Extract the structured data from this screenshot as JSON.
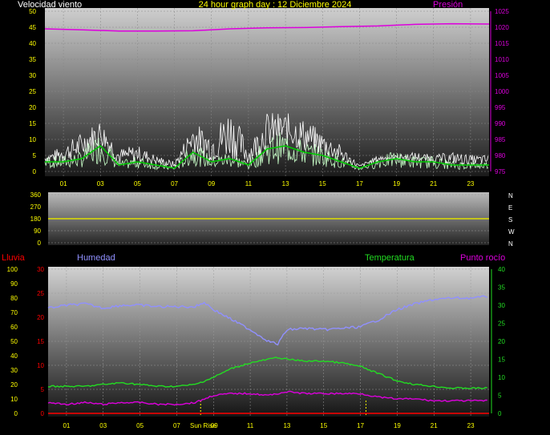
{
  "header": {
    "wind_label": "Velocidad viento",
    "title": "24 hour graph day : 12 Diciembre 2024",
    "pressure_label": "Presión"
  },
  "labels": {
    "rain": "Lluvia",
    "humidity": "Humedad",
    "temperature": "Temperatura",
    "dewpoint": "Punto rocío",
    "sunrise": "Sun Rise"
  },
  "colors": {
    "wind_gust": "#ffffff",
    "wind_speed": "#c8ffc8",
    "wind_avg": "#00cc00",
    "pressure": "#dd00dd",
    "direction": "#e0e000",
    "rain": "#ff0000",
    "humidity": "#9090ff",
    "temperature": "#22dd22",
    "dewpoint": "#dd00dd",
    "yellow_text": "#ffff00",
    "tick_left": "#ffff00",
    "tick_right": "#dd00dd"
  },
  "chart_data": [
    {
      "type": "line",
      "name": "wind-pressure",
      "x_ticks": [
        "01",
        "03",
        "05",
        "07",
        "09",
        "11",
        "13",
        "15",
        "17",
        "19",
        "21",
        "23"
      ],
      "y_left_ticks": [
        "0",
        "5",
        "10",
        "15",
        "20",
        "25",
        "30",
        "35",
        "40",
        "45",
        "50"
      ],
      "y_left_range": [
        0,
        50
      ],
      "y_right_ticks": [
        "975",
        "980",
        "985",
        "990",
        "995",
        "1000",
        "1005",
        "1010",
        "1015",
        "1020",
        "1025"
      ],
      "y_right_range": [
        975,
        1025
      ],
      "pressure": {
        "x": [
          0,
          2,
          4,
          6,
          8,
          10,
          12,
          14,
          16,
          18,
          20,
          22,
          24
        ],
        "y": [
          1019.5,
          1019.2,
          1018.8,
          1018.8,
          1018.9,
          1019.5,
          1019.8,
          1019.9,
          1020.2,
          1020.4,
          1020.9,
          1021.1,
          1021.0
        ]
      },
      "wind_avg": {
        "x": [
          0,
          1,
          2,
          3,
          4,
          5,
          6,
          7,
          8,
          9,
          10,
          11,
          12,
          13,
          14,
          15,
          16,
          17,
          18,
          19,
          20,
          21,
          22,
          23,
          24
        ],
        "y": [
          3,
          3,
          4,
          8,
          2,
          3,
          2,
          1,
          6,
          3,
          4,
          2,
          7,
          8,
          6,
          5,
          3,
          1,
          3,
          4,
          3,
          3,
          2,
          2,
          2
        ]
      },
      "wind_gust": {
        "x": [
          0,
          1,
          2,
          3,
          4,
          5,
          6,
          7,
          8,
          9,
          10,
          11,
          12,
          13,
          14,
          15,
          16,
          17,
          18,
          19,
          20,
          21,
          22,
          23,
          24
        ],
        "y": [
          5,
          8,
          12,
          16,
          7,
          8,
          5,
          3,
          15,
          12,
          20,
          8,
          18,
          18,
          16,
          12,
          8,
          2,
          5,
          5,
          6,
          5,
          6,
          5,
          5
        ]
      }
    },
    {
      "type": "line",
      "name": "direction",
      "y_ticks": [
        "0",
        "90",
        "180",
        "270",
        "360"
      ],
      "y_range": [
        0,
        360
      ],
      "compass": [
        "N",
        "W",
        "S",
        "E",
        "N"
      ],
      "direction": {
        "x": [
          0,
          24
        ],
        "y": [
          180,
          180
        ]
      }
    },
    {
      "type": "line",
      "name": "humidity-temperature",
      "x_ticks": [
        "01",
        "03",
        "05",
        "07",
        "09",
        "11",
        "13",
        "15",
        "17",
        "19",
        "21",
        "23"
      ],
      "y_humidity_ticks": [
        "0",
        "10",
        "20",
        "30",
        "40",
        "50",
        "60",
        "70",
        "80",
        "90",
        "100"
      ],
      "y_humidity_range": [
        0,
        100
      ],
      "y_rain_ticks": [
        "0",
        "5",
        "10",
        "15",
        "20",
        "25",
        "30"
      ],
      "y_rain_range": [
        0,
        30
      ],
      "y_temp_ticks": [
        "0",
        "5",
        "10",
        "15",
        "20",
        "25",
        "30",
        "35",
        "40"
      ],
      "y_temp_range": [
        0,
        40
      ],
      "humidity": {
        "x": [
          0,
          1,
          2,
          3,
          4,
          5,
          6,
          7,
          8,
          8.5,
          9,
          10,
          11,
          12,
          12.5,
          13,
          14,
          15,
          16,
          17,
          18,
          19,
          20,
          21,
          22,
          23,
          24
        ],
        "y": [
          73,
          75,
          76,
          73,
          75,
          75,
          74,
          74,
          74,
          77,
          72,
          65,
          58,
          50,
          48,
          58,
          59,
          58,
          59,
          60,
          65,
          72,
          76,
          79,
          80,
          80,
          81
        ]
      },
      "temperature": {
        "x": [
          0,
          1,
          2,
          3,
          4,
          5,
          6,
          7,
          8,
          9,
          10,
          11,
          12,
          12.5,
          13,
          14,
          15,
          16,
          17,
          18,
          19,
          20,
          21,
          22,
          23,
          24
        ],
        "y": [
          7.5,
          7.5,
          7.5,
          8,
          8.5,
          8,
          7.5,
          7.5,
          8,
          10,
          12.5,
          14,
          15,
          15.5,
          15,
          14.5,
          14.5,
          14,
          13,
          11,
          9,
          8,
          7.5,
          7,
          7,
          7
        ]
      },
      "dewpoint": {
        "x": [
          0,
          1,
          2,
          3,
          4,
          5,
          6,
          7,
          8,
          9,
          10,
          11,
          12,
          13,
          14,
          15,
          16,
          17,
          18,
          19,
          20,
          21,
          22,
          23,
          24
        ],
        "y": [
          3,
          2.5,
          3,
          2.5,
          3,
          3,
          2.5,
          2.5,
          3,
          5,
          5.5,
          5.5,
          5,
          6,
          5.5,
          5.5,
          5.5,
          5.5,
          4.5,
          4,
          4,
          3.5,
          3.5,
          3.5,
          3.5
        ]
      },
      "rain": {
        "x": [
          0,
          24
        ],
        "y": [
          0,
          0
        ]
      },
      "sunrise_hour": 8.3,
      "sunset_hour": 17.3
    }
  ]
}
